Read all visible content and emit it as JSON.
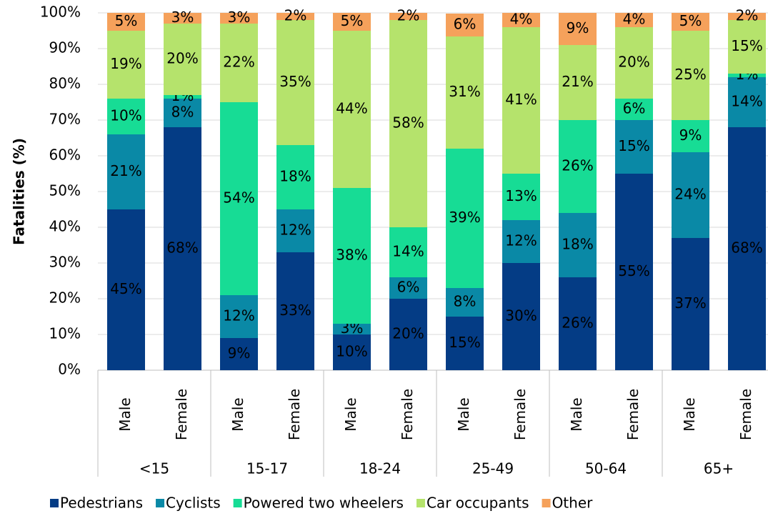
{
  "chart_data": {
    "type": "stacked_bar",
    "y_label": "Fatalities (%)",
    "categories": [
      "Male",
      "Female",
      "Male",
      "Female",
      "Male",
      "Female",
      "Male",
      "Female",
      "Male",
      "Female",
      "Male",
      "Female"
    ],
    "groups": [
      "<15",
      "15-17",
      "18-24",
      "25-49",
      "50-64",
      "65+"
    ],
    "ylim": [
      0,
      100
    ],
    "yticks": [
      {
        "value": 0,
        "label": "0%"
      },
      {
        "value": 10,
        "label": "10%"
      },
      {
        "value": 20,
        "label": "20%"
      },
      {
        "value": 30,
        "label": "30%"
      },
      {
        "value": 40,
        "label": "40%"
      },
      {
        "value": 50,
        "label": "50%"
      },
      {
        "value": 60,
        "label": "60%"
      },
      {
        "value": 70,
        "label": "70%"
      },
      {
        "value": 80,
        "label": "80%"
      },
      {
        "value": 90,
        "label": "90%"
      },
      {
        "value": 100,
        "label": "100%"
      }
    ],
    "grid": true,
    "legend": "bottom",
    "series": [
      {
        "name": "Pedestrians",
        "color": "#043c85",
        "label_color": "#ffffff",
        "values": [
          45,
          68,
          9,
          33,
          10,
          20,
          15,
          30,
          26,
          55,
          37,
          68
        ],
        "value_labels": [
          "45%",
          "68%",
          "9%",
          "33%",
          "10%",
          "20%",
          "15%",
          "30%",
          "26%",
          "55%",
          "37%",
          "68%"
        ]
      },
      {
        "name": "Cyclists",
        "color": "#0a89a6",
        "label_color": "#ffffff",
        "values": [
          21,
          8,
          12,
          12,
          3,
          6,
          8,
          12,
          18,
          15,
          24,
          14
        ],
        "value_labels": [
          "21%",
          "8%",
          "12%",
          "12%",
          "3%",
          "6%",
          "8%",
          "12%",
          "18%",
          "15%",
          "24%",
          "14%"
        ]
      },
      {
        "name": "Powered two wheelers",
        "color": "#17dc95",
        "label_color": "#000000",
        "values": [
          10,
          1,
          54,
          18,
          38,
          14,
          39,
          13,
          26,
          6,
          9,
          1
        ],
        "value_labels": [
          "10%",
          "1%",
          "54%",
          "18%",
          "38%",
          "14%",
          "39%",
          "13%",
          "26%",
          "6%",
          "9%",
          "1%"
        ]
      },
      {
        "name": "Car occupants",
        "color": "#b5e36c",
        "label_color": "#000000",
        "values": [
          19,
          20,
          22,
          35,
          44,
          58,
          31.4,
          41,
          21,
          20,
          25,
          15
        ],
        "value_labels": [
          "19%",
          "20%",
          "22%",
          "35%",
          "44%",
          "58%",
          "31%",
          "41%",
          "21%",
          "20%",
          "25%",
          "15%"
        ]
      },
      {
        "name": "Other",
        "color": "#f5a15b",
        "label_color": "#000000",
        "values": [
          5,
          3,
          3,
          2,
          5,
          2,
          6.4,
          4,
          9,
          4,
          5,
          2
        ],
        "value_labels": [
          "5%",
          "3%",
          "3%",
          "2%",
          "5%",
          "2%",
          "6%",
          "4%",
          "9%",
          "4%",
          "5%",
          "2%"
        ]
      }
    ]
  }
}
